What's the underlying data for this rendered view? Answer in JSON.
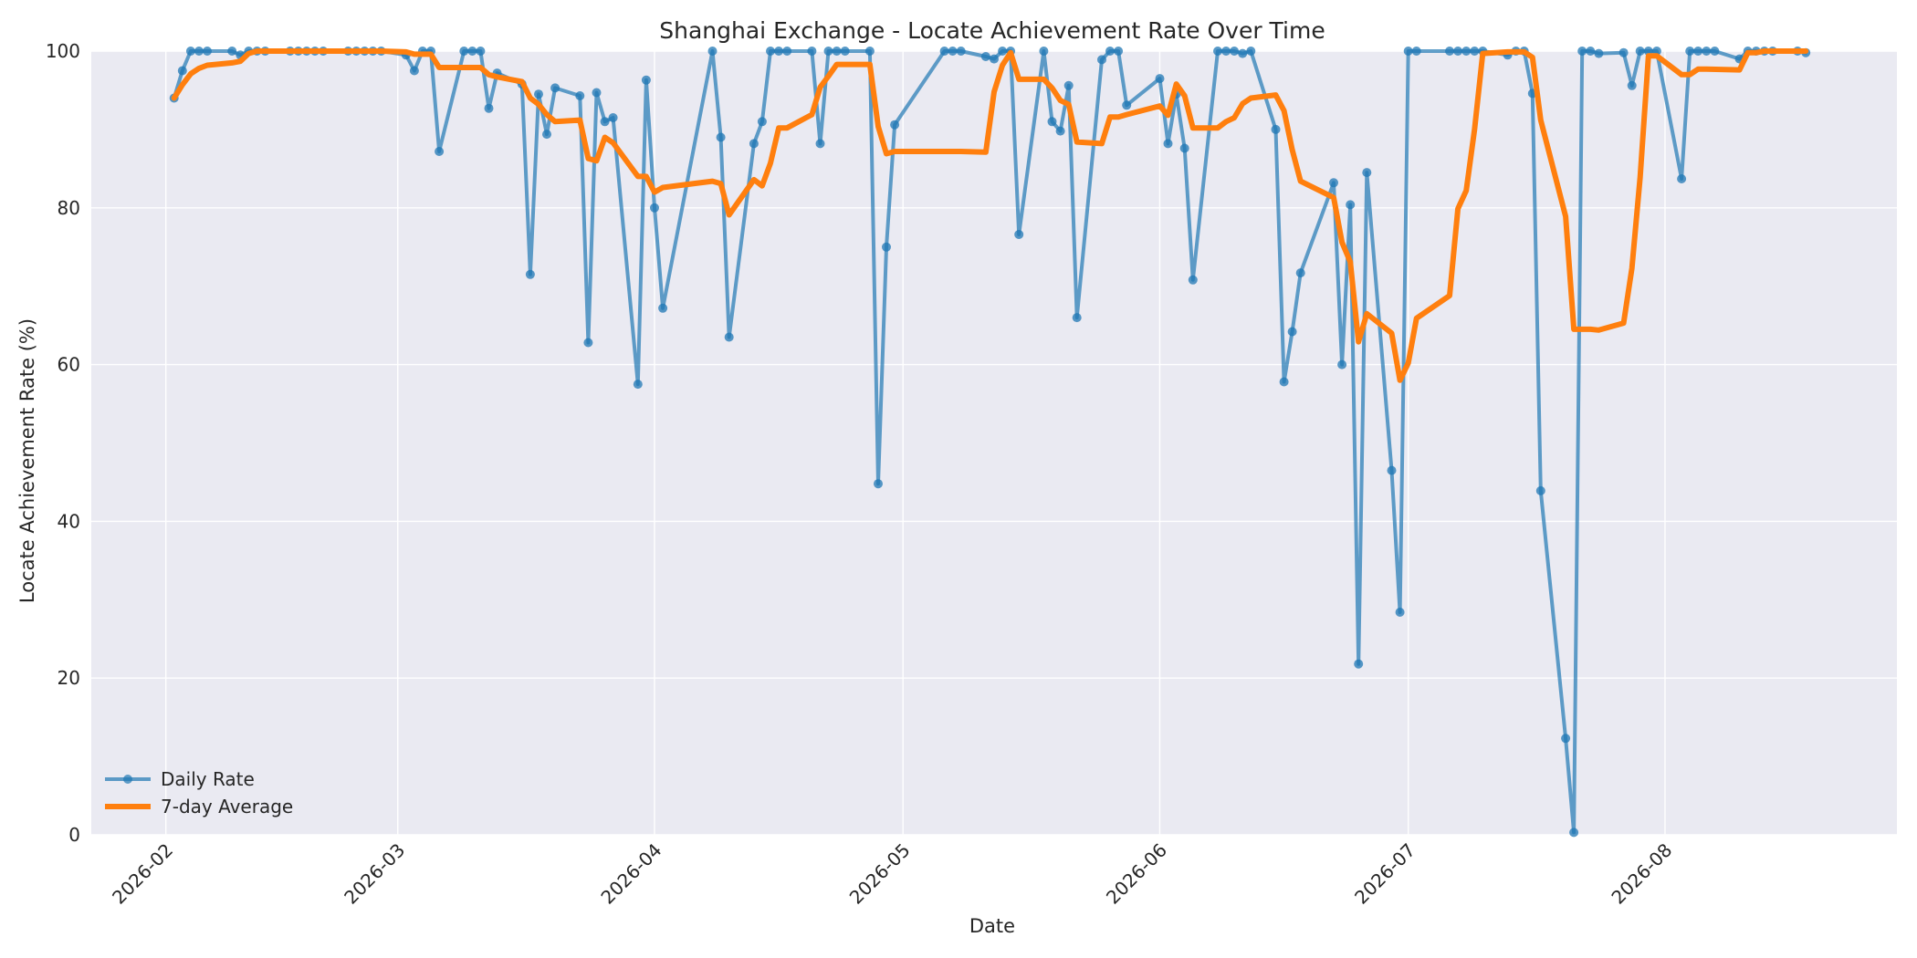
{
  "chart_data": {
    "type": "line",
    "title": "Shanghai Exchange - Locate Achievement Rate Over Time",
    "xlabel": "Date",
    "ylabel": "Locate Achievement Rate (%)",
    "ylim": [
      0,
      100
    ],
    "xlim": [
      "2026-01-23",
      "2026-08-29"
    ],
    "x_ticks": [
      "2026-02",
      "2026-03",
      "2026-04",
      "2026-05",
      "2026-06",
      "2026-07",
      "2026-08"
    ],
    "x_tick_dates": [
      "2026-02-01",
      "2026-03-01",
      "2026-04-01",
      "2026-05-01",
      "2026-06-01",
      "2026-07-01",
      "2026-08-01"
    ],
    "y_ticks": [
      0,
      20,
      40,
      60,
      80,
      100
    ],
    "grid": true,
    "legend": "lower-left",
    "series": [
      {
        "name": "Daily Rate",
        "color": "#1f77b4",
        "marker": "circle",
        "points": [
          [
            "2026-02-02",
            94
          ],
          [
            "2026-02-03",
            97.5
          ],
          [
            "2026-02-04",
            100
          ],
          [
            "2026-02-05",
            100
          ],
          [
            "2026-02-06",
            100
          ],
          [
            "2026-02-09",
            100
          ],
          [
            "2026-02-10",
            99.5
          ],
          [
            "2026-02-11",
            100
          ],
          [
            "2026-02-12",
            100
          ],
          [
            "2026-02-13",
            100
          ],
          [
            "2026-02-16",
            100
          ],
          [
            "2026-02-17",
            100
          ],
          [
            "2026-02-18",
            100
          ],
          [
            "2026-02-19",
            100
          ],
          [
            "2026-02-20",
            100
          ],
          [
            "2026-02-23",
            100
          ],
          [
            "2026-02-24",
            100
          ],
          [
            "2026-02-25",
            100
          ],
          [
            "2026-02-26",
            100
          ],
          [
            "2026-02-27",
            100
          ],
          [
            "2026-03-02",
            99.5
          ],
          [
            "2026-03-03",
            97.5
          ],
          [
            "2026-03-04",
            100
          ],
          [
            "2026-03-05",
            100
          ],
          [
            "2026-03-06",
            87.2
          ],
          [
            "2026-03-09",
            100
          ],
          [
            "2026-03-10",
            100
          ],
          [
            "2026-03-11",
            100
          ],
          [
            "2026-03-12",
            92.7
          ],
          [
            "2026-03-13",
            97.2
          ],
          [
            "2026-03-16",
            95.8
          ],
          [
            "2026-03-17",
            71.5
          ],
          [
            "2026-03-18",
            94.5
          ],
          [
            "2026-03-19",
            89.4
          ],
          [
            "2026-03-20",
            95.3
          ],
          [
            "2026-03-23",
            94.3
          ],
          [
            "2026-03-24",
            62.8
          ],
          [
            "2026-03-25",
            94.7
          ],
          [
            "2026-03-26",
            91.0
          ],
          [
            "2026-03-27",
            91.5
          ],
          [
            "2026-03-30",
            57.5
          ],
          [
            "2026-03-31",
            96.3
          ],
          [
            "2026-04-01",
            80.0
          ],
          [
            "2026-04-02",
            67.2
          ],
          [
            "2026-04-08",
            100
          ],
          [
            "2026-04-09",
            89.0
          ],
          [
            "2026-04-10",
            63.5
          ],
          [
            "2026-04-13",
            88.2
          ],
          [
            "2026-04-14",
            91.0
          ],
          [
            "2026-04-15",
            100
          ],
          [
            "2026-04-16",
            100
          ],
          [
            "2026-04-17",
            100
          ],
          [
            "2026-04-20",
            100
          ],
          [
            "2026-04-21",
            88.2
          ],
          [
            "2026-04-22",
            100
          ],
          [
            "2026-04-23",
            100
          ],
          [
            "2026-04-24",
            100
          ],
          [
            "2026-04-27",
            100
          ],
          [
            "2026-04-28",
            44.8
          ],
          [
            "2026-04-29",
            75.0
          ],
          [
            "2026-04-30",
            90.6
          ],
          [
            "2026-05-06",
            100
          ],
          [
            "2026-05-07",
            100
          ],
          [
            "2026-05-08",
            100
          ],
          [
            "2026-05-11",
            99.3
          ],
          [
            "2026-05-12",
            99.0
          ],
          [
            "2026-05-13",
            100
          ],
          [
            "2026-05-14",
            100
          ],
          [
            "2026-05-15",
            76.6
          ],
          [
            "2026-05-18",
            100
          ],
          [
            "2026-05-19",
            91.0
          ],
          [
            "2026-05-20",
            89.8
          ],
          [
            "2026-05-21",
            95.6
          ],
          [
            "2026-05-22",
            66.0
          ],
          [
            "2026-05-25",
            98.9
          ],
          [
            "2026-05-26",
            100
          ],
          [
            "2026-05-27",
            100
          ],
          [
            "2026-05-28",
            93.1
          ],
          [
            "2026-06-01",
            96.5
          ],
          [
            "2026-06-02",
            88.2
          ],
          [
            "2026-06-03",
            94.5
          ],
          [
            "2026-06-04",
            87.6
          ],
          [
            "2026-06-05",
            70.8
          ],
          [
            "2026-06-08",
            100
          ],
          [
            "2026-06-09",
            100
          ],
          [
            "2026-06-10",
            100
          ],
          [
            "2026-06-11",
            99.7
          ],
          [
            "2026-06-12",
            100
          ],
          [
            "2026-06-15",
            90.0
          ],
          [
            "2026-06-16",
            57.8
          ],
          [
            "2026-06-17",
            64.2
          ],
          [
            "2026-06-18",
            71.7
          ],
          [
            "2026-06-22",
            83.2
          ],
          [
            "2026-06-23",
            60.0
          ],
          [
            "2026-06-24",
            80.4
          ],
          [
            "2026-06-25",
            21.8
          ],
          [
            "2026-06-26",
            84.5
          ],
          [
            "2026-06-29",
            46.5
          ],
          [
            "2026-06-30",
            28.4
          ],
          [
            "2026-07-01",
            100
          ],
          [
            "2026-07-02",
            100
          ],
          [
            "2026-07-06",
            100
          ],
          [
            "2026-07-07",
            100
          ],
          [
            "2026-07-08",
            100
          ],
          [
            "2026-07-09",
            100
          ],
          [
            "2026-07-10",
            100
          ],
          [
            "2026-07-13",
            99.5
          ],
          [
            "2026-07-14",
            100
          ],
          [
            "2026-07-15",
            100
          ],
          [
            "2026-07-16",
            94.6
          ],
          [
            "2026-07-17",
            43.9
          ],
          [
            "2026-07-20",
            12.3
          ],
          [
            "2026-07-21",
            0.3
          ],
          [
            "2026-07-22",
            100
          ],
          [
            "2026-07-23",
            100
          ],
          [
            "2026-07-24",
            99.7
          ],
          [
            "2026-07-27",
            99.8
          ],
          [
            "2026-07-28",
            95.6
          ],
          [
            "2026-07-29",
            100
          ],
          [
            "2026-07-30",
            100
          ],
          [
            "2026-07-31",
            100
          ],
          [
            "2026-08-03",
            83.7
          ],
          [
            "2026-08-04",
            100
          ],
          [
            "2026-08-05",
            100
          ],
          [
            "2026-08-06",
            100
          ],
          [
            "2026-08-07",
            100
          ],
          [
            "2026-08-10",
            99.0
          ],
          [
            "2026-08-11",
            100
          ],
          [
            "2026-08-12",
            100
          ],
          [
            "2026-08-13",
            100
          ],
          [
            "2026-08-14",
            100
          ],
          [
            "2026-08-17",
            100
          ],
          [
            "2026-08-18",
            99.8
          ]
        ]
      },
      {
        "name": "7-day Average",
        "color": "#ff7f0e",
        "marker": "none",
        "points": [
          [
            "2026-02-02",
            94
          ],
          [
            "2026-02-03",
            95.7
          ],
          [
            "2026-02-04",
            97.1
          ],
          [
            "2026-02-05",
            97.8
          ],
          [
            "2026-02-06",
            98.2
          ],
          [
            "2026-02-09",
            98.5
          ],
          [
            "2026-02-10",
            98.7
          ],
          [
            "2026-02-11",
            99.7
          ],
          [
            "2026-02-12",
            100
          ],
          [
            "2026-02-13",
            100
          ],
          [
            "2026-02-16",
            100
          ],
          [
            "2026-02-20",
            100
          ],
          [
            "2026-02-27",
            100
          ],
          [
            "2026-03-02",
            99.9
          ],
          [
            "2026-03-03",
            99.6
          ],
          [
            "2026-03-04",
            99.6
          ],
          [
            "2026-03-05",
            99.6
          ],
          [
            "2026-03-06",
            97.9
          ],
          [
            "2026-03-09",
            97.9
          ],
          [
            "2026-03-10",
            97.9
          ],
          [
            "2026-03-11",
            97.9
          ],
          [
            "2026-03-12",
            97.0
          ],
          [
            "2026-03-13",
            96.7
          ],
          [
            "2026-03-16",
            96.1
          ],
          [
            "2026-03-17",
            94.0
          ],
          [
            "2026-03-18",
            93.2
          ],
          [
            "2026-03-19",
            91.9
          ],
          [
            "2026-03-20",
            91.0
          ],
          [
            "2026-03-23",
            91.2
          ],
          [
            "2026-03-24",
            86.3
          ],
          [
            "2026-03-25",
            86.0
          ],
          [
            "2026-03-26",
            89.0
          ],
          [
            "2026-03-27",
            88.3
          ],
          [
            "2026-03-30",
            84.0
          ],
          [
            "2026-03-31",
            84.0
          ],
          [
            "2026-04-01",
            82.0
          ],
          [
            "2026-04-02",
            82.6
          ],
          [
            "2026-04-08",
            83.4
          ],
          [
            "2026-04-09",
            83.1
          ],
          [
            "2026-04-10",
            79.1
          ],
          [
            "2026-04-13",
            83.6
          ],
          [
            "2026-04-14",
            82.8
          ],
          [
            "2026-04-15",
            85.7
          ],
          [
            "2026-04-16",
            90.2
          ],
          [
            "2026-04-17",
            90.2
          ],
          [
            "2026-04-20",
            91.9
          ],
          [
            "2026-04-21",
            95.4
          ],
          [
            "2026-04-22",
            96.8
          ],
          [
            "2026-04-23",
            98.3
          ],
          [
            "2026-04-24",
            98.3
          ],
          [
            "2026-04-27",
            98.3
          ],
          [
            "2026-04-28",
            90.4
          ],
          [
            "2026-04-29",
            86.9
          ],
          [
            "2026-04-30",
            87.2
          ],
          [
            "2026-05-06",
            87.2
          ],
          [
            "2026-05-08",
            87.2
          ],
          [
            "2026-05-11",
            87.1
          ],
          [
            "2026-05-12",
            94.8
          ],
          [
            "2026-05-13",
            98.2
          ],
          [
            "2026-05-14",
            99.8
          ],
          [
            "2026-05-15",
            96.4
          ],
          [
            "2026-05-18",
            96.4
          ],
          [
            "2026-05-19",
            95.3
          ],
          [
            "2026-05-20",
            93.7
          ],
          [
            "2026-05-21",
            93.2
          ],
          [
            "2026-05-22",
            88.4
          ],
          [
            "2026-05-25",
            88.2
          ],
          [
            "2026-05-26",
            91.6
          ],
          [
            "2026-05-27",
            91.6
          ],
          [
            "2026-05-28",
            91.9
          ],
          [
            "2026-06-01",
            93.0
          ],
          [
            "2026-06-02",
            91.8
          ],
          [
            "2026-06-03",
            95.8
          ],
          [
            "2026-06-04",
            94.3
          ],
          [
            "2026-06-05",
            90.2
          ],
          [
            "2026-06-08",
            90.2
          ],
          [
            "2026-06-09",
            91.0
          ],
          [
            "2026-06-10",
            91.5
          ],
          [
            "2026-06-11",
            93.3
          ],
          [
            "2026-06-12",
            94.0
          ],
          [
            "2026-06-15",
            94.4
          ],
          [
            "2026-06-16",
            92.4
          ],
          [
            "2026-06-17",
            87.4
          ],
          [
            "2026-06-18",
            83.4
          ],
          [
            "2026-06-22",
            81.3
          ],
          [
            "2026-06-23",
            75.6
          ],
          [
            "2026-06-24",
            73.1
          ],
          [
            "2026-06-25",
            62.9
          ],
          [
            "2026-06-26",
            66.5
          ],
          [
            "2026-06-29",
            64.0
          ],
          [
            "2026-06-30",
            58.0
          ],
          [
            "2026-07-01",
            60.2
          ],
          [
            "2026-07-02",
            65.9
          ],
          [
            "2026-07-06",
            68.8
          ],
          [
            "2026-07-07",
            79.9
          ],
          [
            "2026-07-08",
            82.2
          ],
          [
            "2026-07-09",
            90.0
          ],
          [
            "2026-07-10",
            99.7
          ],
          [
            "2026-07-13",
            99.9
          ],
          [
            "2026-07-14",
            99.9
          ],
          [
            "2026-07-15",
            99.9
          ],
          [
            "2026-07-16",
            99.2
          ],
          [
            "2026-07-17",
            91.2
          ],
          [
            "2026-07-20",
            78.9
          ],
          [
            "2026-07-21",
            64.5
          ],
          [
            "2026-07-22",
            64.5
          ],
          [
            "2026-07-23",
            64.5
          ],
          [
            "2026-07-24",
            64.4
          ],
          [
            "2026-07-27",
            65.3
          ],
          [
            "2026-07-28",
            72.3
          ],
          [
            "2026-07-29",
            83.9
          ],
          [
            "2026-07-30",
            99.4
          ],
          [
            "2026-07-31",
            99.4
          ],
          [
            "2026-08-03",
            97.0
          ],
          [
            "2026-08-04",
            97.0
          ],
          [
            "2026-08-05",
            97.7
          ],
          [
            "2026-08-06",
            97.7
          ],
          [
            "2026-08-10",
            97.6
          ],
          [
            "2026-08-11",
            99.8
          ],
          [
            "2026-08-12",
            99.8
          ],
          [
            "2026-08-13",
            100
          ],
          [
            "2026-08-14",
            100
          ],
          [
            "2026-08-17",
            100
          ],
          [
            "2026-08-18",
            100
          ]
        ]
      }
    ]
  }
}
